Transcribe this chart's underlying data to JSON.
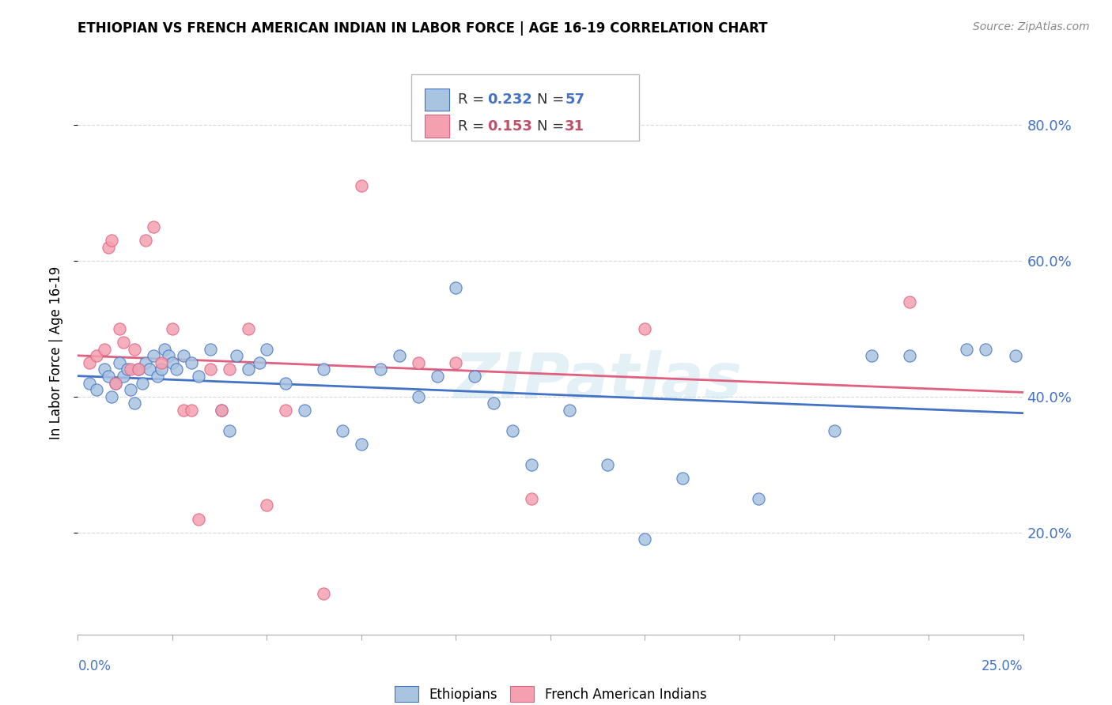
{
  "title": "ETHIOPIAN VS FRENCH AMERICAN INDIAN IN LABOR FORCE | AGE 16-19 CORRELATION CHART",
  "source": "Source: ZipAtlas.com",
  "ylabel": "In Labor Force | Age 16-19",
  "ylabel_ticks": [
    "20.0%",
    "40.0%",
    "60.0%",
    "80.0%"
  ],
  "ylabel_tick_vals": [
    0.2,
    0.4,
    0.6,
    0.8
  ],
  "xlim": [
    0.0,
    0.25
  ],
  "ylim": [
    0.05,
    0.88
  ],
  "blue_color": "#a8c4e0",
  "pink_color": "#f4a0b0",
  "blue_line_color": "#4472c4",
  "pink_line_color": "#e06080",
  "legend_blue_text": "#4472c4",
  "legend_pink_text": "#c0506a",
  "watermark": "ZIPatlas",
  "ethiopians_x": [
    0.003,
    0.005,
    0.007,
    0.008,
    0.009,
    0.01,
    0.011,
    0.012,
    0.013,
    0.014,
    0.015,
    0.016,
    0.017,
    0.018,
    0.019,
    0.02,
    0.021,
    0.022,
    0.023,
    0.024,
    0.025,
    0.026,
    0.028,
    0.03,
    0.032,
    0.035,
    0.038,
    0.04,
    0.042,
    0.045,
    0.048,
    0.05,
    0.055,
    0.06,
    0.065,
    0.07,
    0.075,
    0.08,
    0.085,
    0.09,
    0.095,
    0.1,
    0.105,
    0.11,
    0.115,
    0.12,
    0.13,
    0.14,
    0.15,
    0.16,
    0.18,
    0.2,
    0.21,
    0.22,
    0.235,
    0.24,
    0.248
  ],
  "ethiopians_y": [
    0.42,
    0.41,
    0.44,
    0.43,
    0.4,
    0.42,
    0.45,
    0.43,
    0.44,
    0.41,
    0.39,
    0.44,
    0.42,
    0.45,
    0.44,
    0.46,
    0.43,
    0.44,
    0.47,
    0.46,
    0.45,
    0.44,
    0.46,
    0.45,
    0.43,
    0.47,
    0.38,
    0.35,
    0.46,
    0.44,
    0.45,
    0.47,
    0.42,
    0.38,
    0.44,
    0.35,
    0.33,
    0.44,
    0.46,
    0.4,
    0.43,
    0.56,
    0.43,
    0.39,
    0.35,
    0.3,
    0.38,
    0.3,
    0.19,
    0.28,
    0.25,
    0.35,
    0.46,
    0.46,
    0.47,
    0.47,
    0.46
  ],
  "french_ai_x": [
    0.003,
    0.005,
    0.007,
    0.008,
    0.009,
    0.01,
    0.011,
    0.012,
    0.014,
    0.015,
    0.016,
    0.018,
    0.02,
    0.022,
    0.025,
    0.028,
    0.03,
    0.032,
    0.035,
    0.038,
    0.04,
    0.045,
    0.05,
    0.055,
    0.065,
    0.075,
    0.09,
    0.1,
    0.12,
    0.15,
    0.22
  ],
  "french_ai_y": [
    0.45,
    0.46,
    0.47,
    0.62,
    0.63,
    0.42,
    0.5,
    0.48,
    0.44,
    0.47,
    0.44,
    0.63,
    0.65,
    0.45,
    0.5,
    0.38,
    0.38,
    0.22,
    0.44,
    0.38,
    0.44,
    0.5,
    0.24,
    0.38,
    0.11,
    0.71,
    0.45,
    0.45,
    0.25,
    0.5,
    0.54
  ]
}
